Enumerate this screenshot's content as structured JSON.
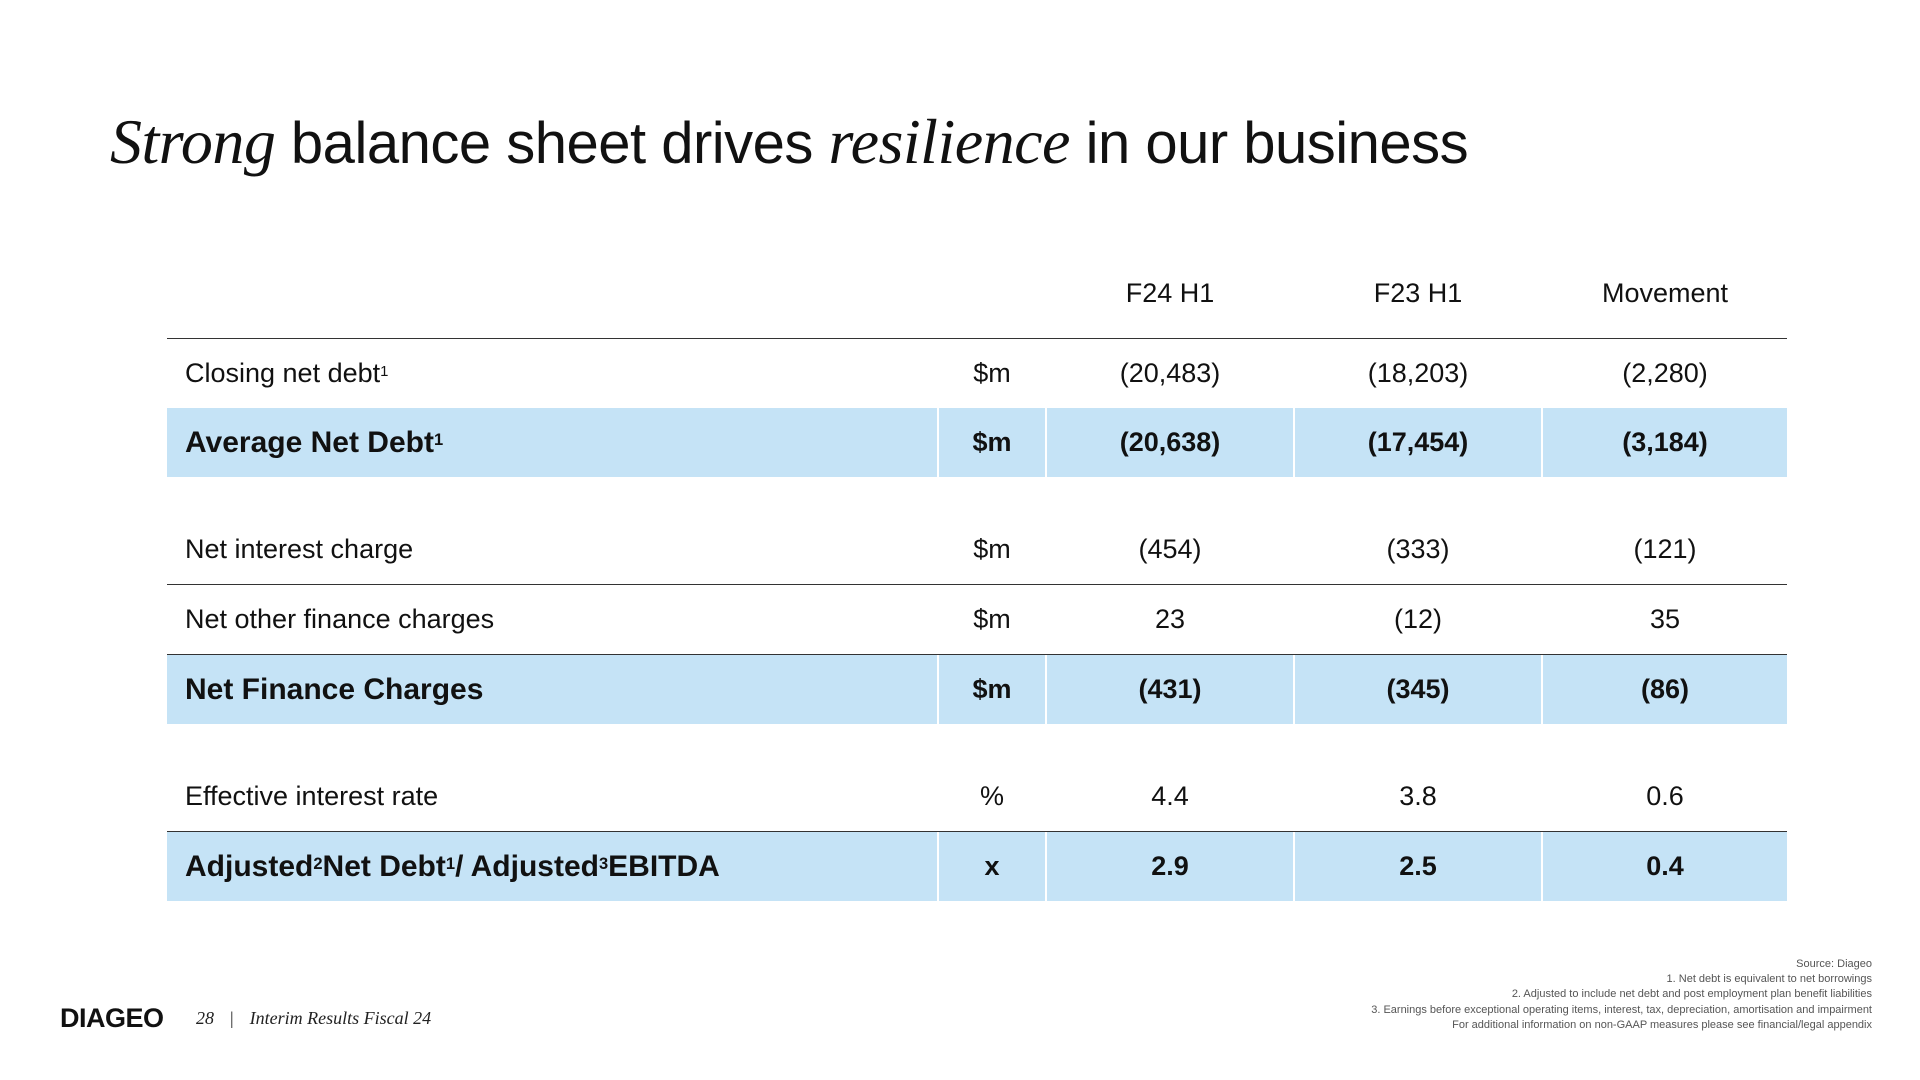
{
  "slide": {
    "title_part1": "Strong",
    "title_part2": " balance sheet drives ",
    "title_part3": "resilience",
    "title_part4": " in our business"
  },
  "table": {
    "headers": [
      "F24 H1",
      "F23 H1",
      "Movement"
    ],
    "rows": [
      {
        "label": "Closing net debt",
        "sup": "1",
        "unit": "$m",
        "f24": "(20,483)",
        "f23": "(18,203)",
        "movement": "(2,280)",
        "highlight": false
      },
      {
        "label": "Average Net Debt",
        "sup": "1",
        "unit": "$m",
        "f24": "(20,638)",
        "f23": "(17,454)",
        "movement": "(3,184)",
        "highlight": true
      },
      {
        "label": "Net interest charge",
        "unit": "$m",
        "f24": "(454)",
        "f23": "(333)",
        "movement": "(121)",
        "highlight": false
      },
      {
        "label": "Net other finance charges",
        "unit": "$m",
        "f24": "23",
        "f23": "(12)",
        "movement": "35",
        "highlight": false
      },
      {
        "label": "Net Finance Charges",
        "unit": "$m",
        "f24": "(431)",
        "f23": "(345)",
        "movement": "(86)",
        "highlight": true
      },
      {
        "label": "Effective interest rate",
        "unit": "%",
        "f24": "4.4",
        "f23": "3.8",
        "movement": "0.6",
        "highlight": false
      },
      {
        "label_parts": [
          "Adjusted",
          "2",
          " Net Debt",
          "1",
          " / Adjusted",
          "3",
          " EBITDA"
        ],
        "unit": "x",
        "f24": "2.9",
        "f23": "2.5",
        "movement": "0.4",
        "highlight": true
      }
    ]
  },
  "footer": {
    "logo": "DIAGEO",
    "page_number": "28",
    "separator": "|",
    "doc_title": "Interim Results Fiscal 24"
  },
  "notes": [
    "Source: Diageo",
    "1. Net debt is equivalent to net borrowings",
    "2. Adjusted to include net debt and post employment plan benefit liabilities",
    "3. Earnings before exceptional operating items, interest, tax, depreciation, amortisation and impairment",
    "For additional information on non-GAAP measures please see financial/legal appendix"
  ]
}
